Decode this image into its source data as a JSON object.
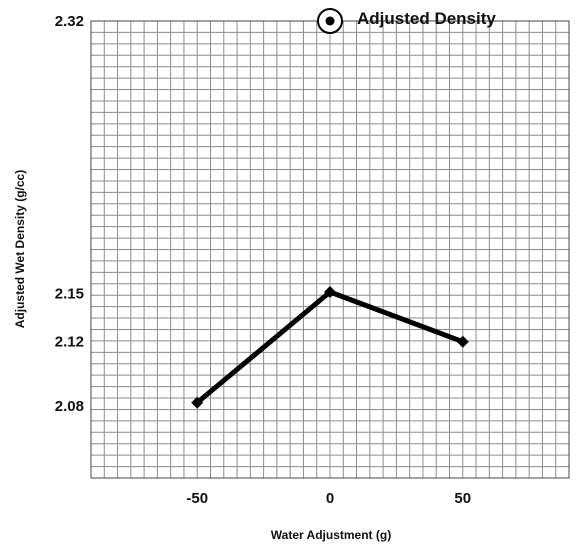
{
  "chart_data": {
    "type": "line",
    "xlabel": "Water Adjustment (g)",
    "ylabel": "Adjusted Wet Density (g/cc)",
    "xlim": [
      -90,
      90
    ],
    "ylim": [
      2.035,
      2.32
    ],
    "x_ticks": [
      {
        "value": -50,
        "label": "-50"
      },
      {
        "value": 0,
        "label": "0"
      },
      {
        "value": 50,
        "label": "50"
      }
    ],
    "y_ticks": [
      {
        "value": 2.32,
        "label": "2.32"
      },
      {
        "value": 2.15,
        "label": "2.15"
      },
      {
        "value": 2.12,
        "label": "2.12"
      },
      {
        "value": 2.08,
        "label": "2.08"
      }
    ],
    "grid": true,
    "legend": {
      "position": "top-right"
    },
    "series": [
      {
        "name": "Adjusted Density",
        "color": "#000000",
        "marker": "diamond",
        "x": [
          -50,
          0,
          50
        ],
        "y": [
          2.082,
          2.151,
          2.12
        ]
      }
    ]
  }
}
